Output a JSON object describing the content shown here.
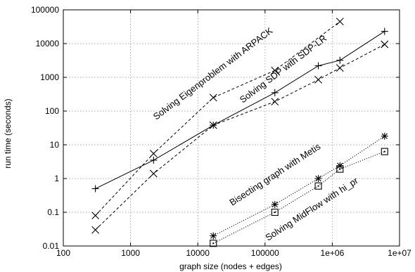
{
  "chart_data": {
    "type": "line",
    "xlabel": "graph size (nodes + edges)",
    "ylabel": "run time (seconds)",
    "x_scale": "log",
    "y_scale": "log",
    "xlim": [
      100,
      10000000
    ],
    "ylim": [
      0.01,
      100000
    ],
    "grid": true,
    "x_ticks": [
      {
        "value": 100,
        "label": "100"
      },
      {
        "value": 1000,
        "label": "1000"
      },
      {
        "value": 10000,
        "label": "10000"
      },
      {
        "value": 100000,
        "label": "100000"
      },
      {
        "value": 1000000,
        "label": "1e+06"
      },
      {
        "value": 10000000,
        "label": "1e+07"
      }
    ],
    "y_ticks": [
      {
        "value": 0.01,
        "label": "0.01"
      },
      {
        "value": 0.1,
        "label": "0.1"
      },
      {
        "value": 1,
        "label": "1"
      },
      {
        "value": 10,
        "label": "10"
      },
      {
        "value": 100,
        "label": "100"
      },
      {
        "value": 1000,
        "label": "1000"
      },
      {
        "value": 10000,
        "label": "10000"
      },
      {
        "value": 100000,
        "label": "100000"
      }
    ],
    "series": [
      {
        "marker": "plus",
        "line": "solid",
        "points": [
          [
            300,
            0.5
          ],
          [
            2200,
            3.5
          ],
          [
            17000,
            38
          ],
          [
            140000,
            350
          ],
          [
            620000,
            2200
          ],
          [
            1300000,
            3200
          ],
          [
            6000000,
            23000
          ]
        ]
      },
      {
        "marker": "x",
        "line": "dashed",
        "points": [
          [
            300,
            0.03
          ],
          [
            2200,
            1.4
          ],
          [
            17000,
            38
          ],
          [
            140000,
            190
          ],
          [
            620000,
            850
          ],
          [
            1300000,
            1900
          ],
          [
            6000000,
            9500
          ]
        ]
      },
      {
        "marker": "x",
        "line": "dashed",
        "points": [
          [
            300,
            0.08
          ],
          [
            2200,
            5.5
          ],
          [
            17000,
            250
          ],
          [
            140000,
            1600
          ],
          [
            1300000,
            45000
          ]
        ]
      },
      {
        "marker": "star",
        "line": "dotted",
        "points": [
          [
            17000,
            0.02
          ],
          [
            140000,
            0.17
          ],
          [
            620000,
            1.0
          ],
          [
            1300000,
            2.4
          ],
          [
            6000000,
            18
          ]
        ]
      },
      {
        "marker": "square",
        "line": "dotted",
        "points": [
          [
            17000,
            0.012
          ],
          [
            140000,
            0.1
          ],
          [
            620000,
            0.6
          ],
          [
            1300000,
            1.9
          ],
          [
            6000000,
            6.3
          ]
        ]
      }
    ],
    "annotations": [
      "Solving Eigenproblem with ARPACK",
      "Solving SDP with SDP-LR",
      "Bisecting graph with Metis",
      "Solving MidFlow with hi_pr"
    ]
  }
}
